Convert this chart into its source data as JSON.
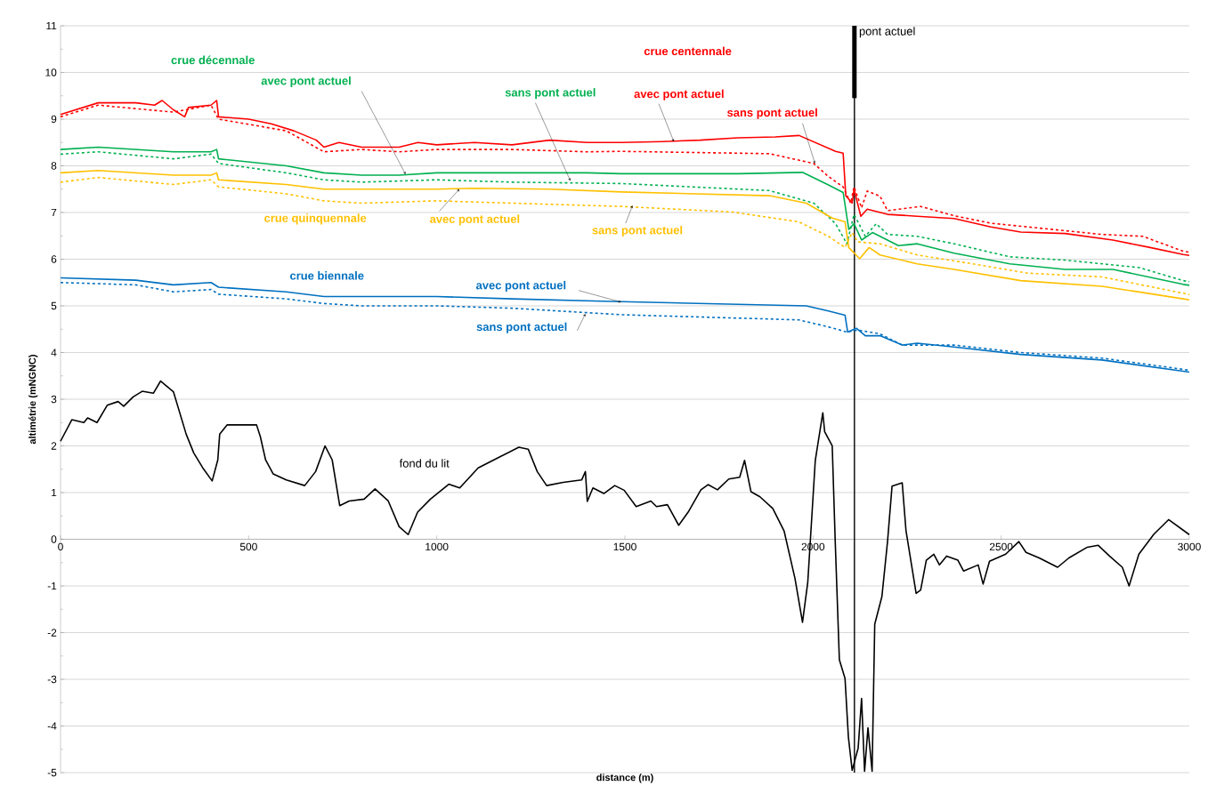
{
  "chart_data": {
    "type": "line",
    "xlabel": "distance (m)",
    "ylabel": "altimétrie (mNGNC)",
    "xlim": [
      0,
      3000
    ],
    "ylim": [
      -5,
      11
    ],
    "xticks": [
      0,
      500,
      1000,
      1500,
      2000,
      2500,
      3000
    ],
    "yticks": [
      -5,
      -4,
      -3,
      -2,
      -1,
      0,
      1,
      2,
      3,
      4,
      5,
      6,
      7,
      8,
      9,
      10,
      11
    ],
    "grid": "y",
    "series": [
      {
        "color": "#ff0000",
        "line_style": "solid",
        "x": [
          0,
          100,
          200,
          250,
          270,
          300,
          330,
          340,
          400,
          415,
          420,
          500,
          560,
          620,
          680,
          700,
          740,
          800,
          900,
          950,
          1000,
          1100,
          1200,
          1300,
          1400,
          1491,
          1600,
          1700,
          1800,
          1900,
          1963,
          2060,
          2080,
          2087,
          2104,
          2109,
          2127,
          2144,
          2198,
          2277,
          2375,
          2473,
          2552,
          2670,
          2797,
          2896,
          2984,
          3000
        ],
        "values": [
          9.1,
          9.35,
          9.35,
          9.3,
          9.4,
          9.2,
          9.05,
          9.25,
          9.3,
          9.4,
          9.05,
          9.0,
          8.9,
          8.75,
          8.55,
          8.4,
          8.5,
          8.4,
          8.4,
          8.5,
          8.45,
          8.5,
          8.45,
          8.55,
          8.5,
          8.5,
          8.52,
          8.55,
          8.6,
          8.62,
          8.65,
          8.31,
          8.27,
          7.36,
          7.2,
          7.5,
          6.92,
          7.07,
          6.96,
          6.92,
          6.87,
          6.69,
          6.58,
          6.55,
          6.41,
          6.25,
          6.1,
          6.08
        ]
      },
      {
        "color": "#ff0000",
        "line_style": "dashed",
        "x": [
          0,
          100,
          300,
          400,
          420,
          600,
          700,
          800,
          900,
          1000,
          1200,
          1400,
          1491,
          1884,
          2002,
          2041,
          2080,
          2100,
          2109,
          2129,
          2144,
          2178,
          2198,
          2286,
          2375,
          2473,
          2572,
          2768,
          2876,
          2984,
          3000
        ],
        "values": [
          9.05,
          9.3,
          9.15,
          9.3,
          9.0,
          8.75,
          8.3,
          8.35,
          8.3,
          8.35,
          8.35,
          8.3,
          8.31,
          8.26,
          8.05,
          7.77,
          7.55,
          7.2,
          7.55,
          7.1,
          7.46,
          7.35,
          7.04,
          7.13,
          6.93,
          6.77,
          6.69,
          6.53,
          6.49,
          6.17,
          6.15
        ]
      },
      {
        "color": "#00b050",
        "line_style": "solid",
        "x": [
          0,
          100,
          300,
          400,
          415,
          420,
          600,
          700,
          800,
          900,
          1000,
          1200,
          1400,
          1491,
          1800,
          1972,
          2041,
          2080,
          2095,
          2109,
          2129,
          2158,
          2227,
          2277,
          2375,
          2523,
          2670,
          2797,
          2984,
          3000
        ],
        "values": [
          8.35,
          8.4,
          8.3,
          8.3,
          8.35,
          8.15,
          8.0,
          7.85,
          7.8,
          7.8,
          7.85,
          7.85,
          7.85,
          7.83,
          7.83,
          7.86,
          7.59,
          7.43,
          6.64,
          6.76,
          6.41,
          6.57,
          6.29,
          6.33,
          6.13,
          5.9,
          5.78,
          5.78,
          5.46,
          5.44
        ]
      },
      {
        "color": "#00b050",
        "line_style": "dashed",
        "x": [
          0,
          100,
          300,
          400,
          420,
          600,
          700,
          800,
          1000,
          1200,
          1491,
          1884,
          2002,
          2060,
          2090,
          2109,
          2139,
          2168,
          2198,
          2277,
          2375,
          2523,
          2670,
          2867,
          2984,
          3000
        ],
        "values": [
          8.25,
          8.3,
          8.15,
          8.25,
          8.05,
          7.85,
          7.7,
          7.65,
          7.7,
          7.65,
          7.62,
          7.47,
          7.2,
          6.76,
          6.33,
          6.96,
          6.49,
          6.76,
          6.53,
          6.49,
          6.33,
          6.05,
          5.98,
          5.82,
          5.54,
          5.52
        ]
      },
      {
        "color": "#ffc000",
        "line_style": "solid",
        "x": [
          0,
          100,
          300,
          400,
          415,
          420,
          600,
          700,
          800,
          1000,
          1100,
          1300,
          1491,
          1884,
          1982,
          2051,
          2085,
          2095,
          2124,
          2149,
          2178,
          2277,
          2375,
          2552,
          2768,
          2984,
          3000
        ],
        "values": [
          7.85,
          7.9,
          7.8,
          7.8,
          7.85,
          7.7,
          7.6,
          7.5,
          7.5,
          7.5,
          7.52,
          7.5,
          7.44,
          7.36,
          7.2,
          6.88,
          6.8,
          6.25,
          6.01,
          6.25,
          6.09,
          5.9,
          5.78,
          5.54,
          5.42,
          5.15,
          5.13
        ]
      },
      {
        "color": "#ffc000",
        "line_style": "dashed",
        "x": [
          0,
          100,
          300,
          400,
          420,
          600,
          700,
          800,
          1000,
          1200,
          1491,
          1786,
          1962,
          2041,
          2085,
          2104,
          2119,
          2178,
          2277,
          2424,
          2572,
          2768,
          2984,
          3000
        ],
        "values": [
          7.65,
          7.75,
          7.6,
          7.7,
          7.55,
          7.4,
          7.25,
          7.2,
          7.25,
          7.2,
          7.13,
          7.01,
          6.8,
          6.49,
          6.25,
          6.57,
          6.37,
          6.33,
          6.09,
          5.9,
          5.7,
          5.62,
          5.27,
          5.24
        ]
      },
      {
        "color": "#0070c0",
        "line_style": "solid",
        "x": [
          0,
          200,
          300,
          400,
          420,
          600,
          700,
          800,
          1000,
          1200,
          1440,
          1982,
          2041,
          2085,
          2092,
          2115,
          2139,
          2178,
          2237,
          2277,
          2375,
          2552,
          2768,
          2984,
          3000
        ],
        "values": [
          5.6,
          5.55,
          5.45,
          5.5,
          5.4,
          5.3,
          5.2,
          5.2,
          5.2,
          5.15,
          5.1,
          5.0,
          4.89,
          4.8,
          4.44,
          4.52,
          4.36,
          4.36,
          4.16,
          4.2,
          4.12,
          3.96,
          3.84,
          3.6,
          3.58
        ]
      },
      {
        "color": "#0070c0",
        "line_style": "dashed",
        "x": [
          0,
          200,
          300,
          400,
          420,
          600,
          700,
          800,
          1000,
          1200,
          1491,
          1962,
          2041,
          2090,
          2119,
          2178,
          2237,
          2375,
          2552,
          2768,
          2984,
          3000
        ],
        "values": [
          5.5,
          5.45,
          5.3,
          5.35,
          5.25,
          5.15,
          5.05,
          5.0,
          5.0,
          4.95,
          4.81,
          4.7,
          4.55,
          4.44,
          4.48,
          4.4,
          4.16,
          4.16,
          4.0,
          3.88,
          3.64,
          3.62
        ]
      },
      {
        "color": "#000000",
        "line_style": "solid",
        "x": [
          0,
          30,
          62,
          72,
          97,
          124,
          153,
          168,
          193,
          217,
          247,
          266,
          300,
          334,
          354,
          378,
          403,
          418,
          423,
          443,
          492,
          521,
          531,
          545,
          565,
          600,
          649,
          678,
          703,
          722,
          742,
          767,
          807,
          836,
          871,
          900,
          924,
          949,
          983,
          1032,
          1061,
          1110,
          1169,
          1218,
          1243,
          1267,
          1292,
          1336,
          1385,
          1395,
          1400,
          1415,
          1444,
          1473,
          1498,
          1530,
          1569,
          1584,
          1613,
          1643,
          1668,
          1702,
          1721,
          1746,
          1776,
          1805,
          1818,
          1835,
          1859,
          1893,
          1923,
          1952,
          1972,
          1986,
          2006,
          2026,
          2031,
          2051,
          2059,
          2070,
          2085,
          2094,
          2104,
          2120,
          2129,
          2137,
          2146,
          2157,
          2164,
          2183,
          2198,
          2210,
          2237,
          2247,
          2274,
          2286,
          2301,
          2321,
          2336,
          2355,
          2385,
          2400,
          2439,
          2452,
          2469,
          2512,
          2547,
          2566,
          2601,
          2650,
          2680,
          2729,
          2758,
          2788,
          2822,
          2840,
          2866,
          2906,
          2945,
          3000
        ],
        "values": [
          2.1,
          2.56,
          2.5,
          2.6,
          2.5,
          2.87,
          2.95,
          2.85,
          3.05,
          3.17,
          3.13,
          3.39,
          3.16,
          2.25,
          1.85,
          1.53,
          1.25,
          1.7,
          2.25,
          2.45,
          2.45,
          2.45,
          2.2,
          1.7,
          1.4,
          1.27,
          1.15,
          1.45,
          2.0,
          1.7,
          0.72,
          0.82,
          0.86,
          1.08,
          0.82,
          0.27,
          0.1,
          0.58,
          0.86,
          1.18,
          1.1,
          1.53,
          1.77,
          1.97,
          1.93,
          1.45,
          1.15,
          1.22,
          1.27,
          1.45,
          0.81,
          1.1,
          0.98,
          1.15,
          1.05,
          0.7,
          0.82,
          0.7,
          0.74,
          0.3,
          0.58,
          1.06,
          1.17,
          1.06,
          1.29,
          1.33,
          1.69,
          1.02,
          0.91,
          0.66,
          0.18,
          -0.84,
          -1.78,
          -0.92,
          1.69,
          2.71,
          2.3,
          2.0,
          -0.05,
          -2.58,
          -2.98,
          -4.24,
          -4.95,
          -4.47,
          -3.41,
          -4.97,
          -4.04,
          -4.97,
          -1.82,
          -1.23,
          -0.05,
          1.14,
          1.21,
          0.19,
          -1.16,
          -1.09,
          -0.45,
          -0.32,
          -0.55,
          -0.36,
          -0.45,
          -0.68,
          -0.55,
          -0.96,
          -0.47,
          -0.32,
          -0.05,
          -0.28,
          -0.4,
          -0.6,
          -0.4,
          -0.17,
          -0.13,
          -0.36,
          -0.6,
          -1.0,
          -0.32,
          0.11,
          0.42,
          0.1
        ]
      }
    ],
    "annotations": [
      "crue décennale",
      "crue centennale",
      {
        "text": "avec pont actuel",
        "x": 917,
        "y": 7.82
      },
      {
        "text": "sans pont actuel",
        "x": 1355,
        "y": 7.68
      },
      {
        "text": "avec pont actuel",
        "x": 1630,
        "y": 8.52
      },
      {
        "text": "sans pont actuel",
        "x": 2005,
        "y": 8.05
      },
      "crue quinquennale",
      {
        "text": "avec pont actuel",
        "x": 1060,
        "y": 7.5
      },
      {
        "text": "sans pont actuel",
        "x": 1520,
        "y": 7.15
      },
      "crue biennale",
      {
        "text": "avec pont actuel",
        "x": 1490,
        "y": 5.08
      },
      {
        "text": "sans pont actuel",
        "x": 1395,
        "y": 4.83
      },
      "fond du lit"
    ],
    "ref_lines": [
      {
        "axis": "x",
        "value": 2110,
        "label": "pont actuel",
        "color": "#000000"
      }
    ]
  }
}
